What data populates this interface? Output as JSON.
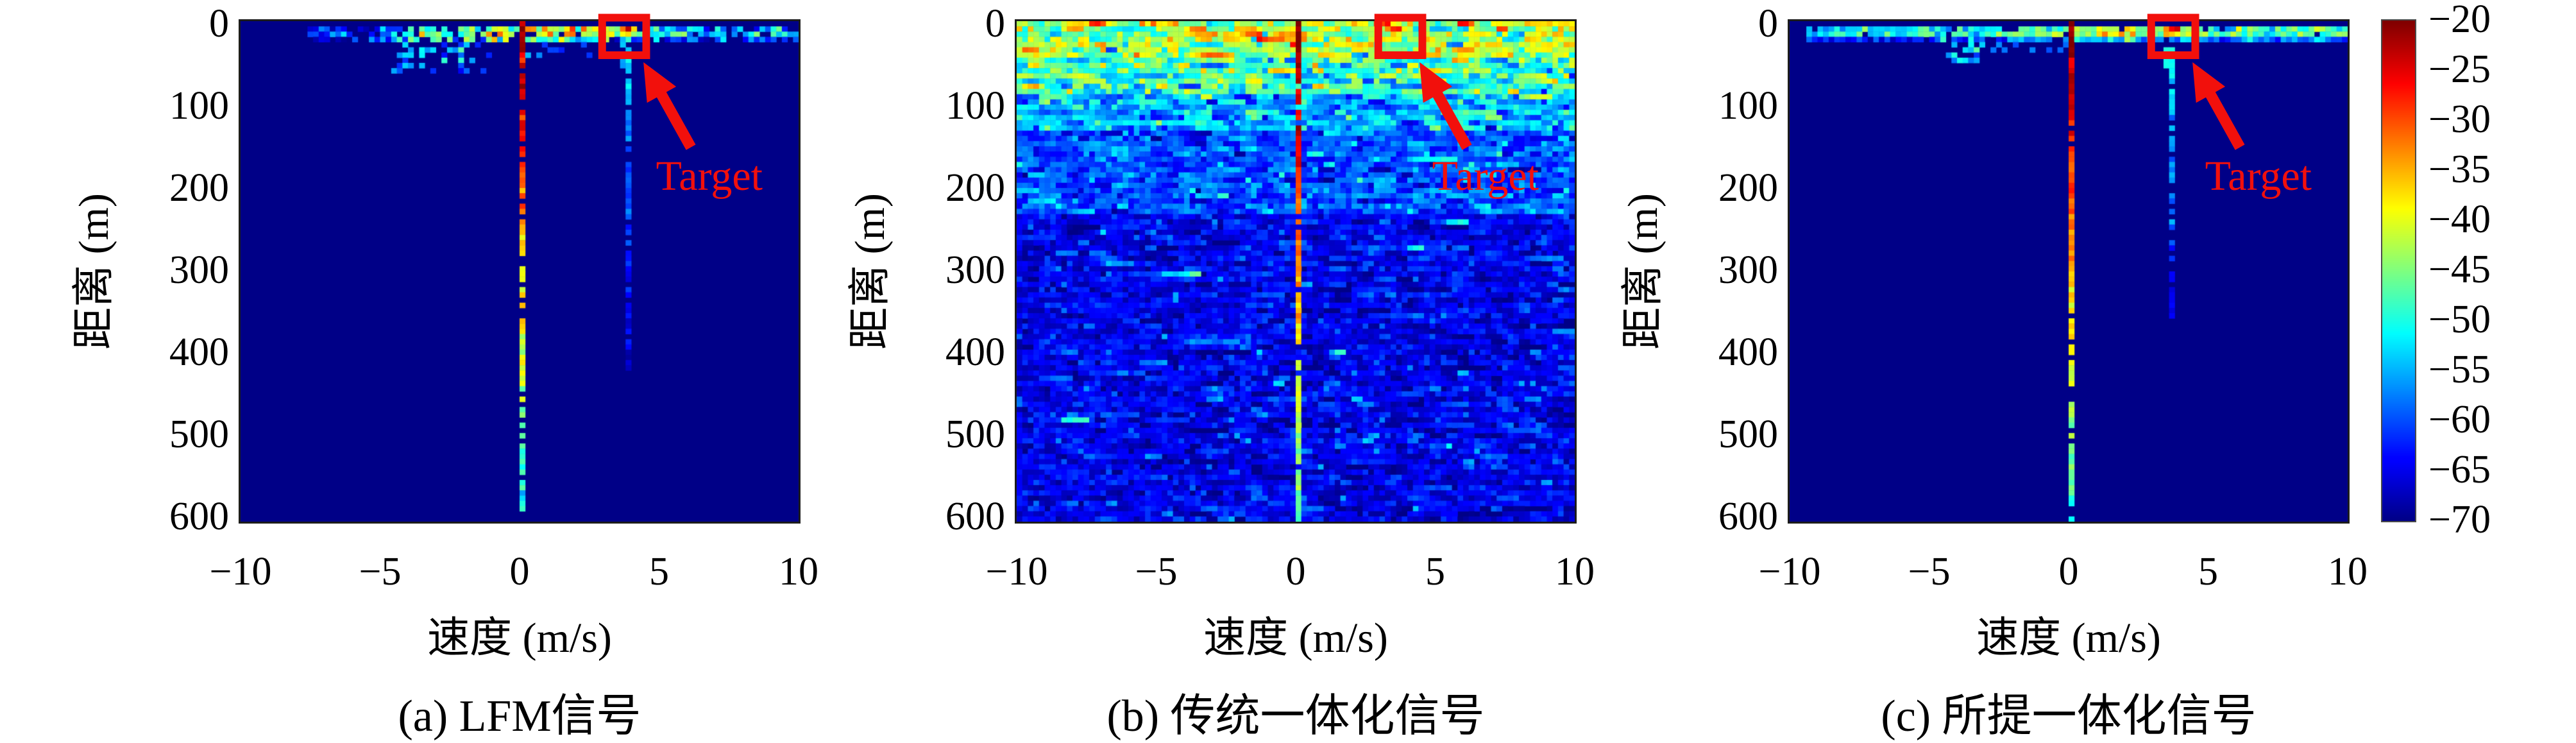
{
  "figure": {
    "background": "#ffffff",
    "text_color": "#000000",
    "annotation_color": "#f2100c",
    "plot_border_color": "#1c1c1c"
  },
  "chart_data": {
    "type": "heatmap",
    "xlabel": "速度 (m/s)",
    "ylabel": "距离 (m)",
    "x_range": [
      -10,
      10
    ],
    "y_range": [
      0,
      600
    ],
    "x_ticks": [
      {
        "v": -10,
        "label": "−10"
      },
      {
        "v": -5,
        "label": "−5"
      },
      {
        "v": 0,
        "label": "0"
      },
      {
        "v": 5,
        "label": "5"
      },
      {
        "v": 10,
        "label": "10"
      }
    ],
    "y_ticks": [
      {
        "v": 0,
        "label": "0"
      },
      {
        "v": 100,
        "label": "100"
      },
      {
        "v": 200,
        "label": "200"
      },
      {
        "v": 300,
        "label": "300"
      },
      {
        "v": 400,
        "label": "400"
      },
      {
        "v": 500,
        "label": "500"
      },
      {
        "v": 600,
        "label": "600"
      }
    ],
    "colorbar": {
      "colormap": "jet",
      "min": -70,
      "max": -20,
      "ticks": [
        {
          "v": -20,
          "label": "−20"
        },
        {
          "v": -25,
          "label": "−25"
        },
        {
          "v": -30,
          "label": "−30"
        },
        {
          "v": -35,
          "label": "−35"
        },
        {
          "v": -40,
          "label": "−40"
        },
        {
          "v": -45,
          "label": "−45"
        },
        {
          "v": -50,
          "label": "−50"
        },
        {
          "v": -55,
          "label": "−55"
        },
        {
          "v": -60,
          "label": "−60"
        },
        {
          "v": -65,
          "label": "−65"
        },
        {
          "v": -70,
          "label": "−70"
        }
      ]
    },
    "annotation": {
      "label": "Target",
      "box": {
        "x1": 0.648,
        "y1": -0.007,
        "x2": 0.727,
        "y2": 0.068
      },
      "arrow": {
        "tail": [
          0.807,
          0.252
        ],
        "tip": [
          0.722,
          0.082
        ]
      },
      "label_pos": {
        "x": 0.84,
        "y": 0.31
      }
    },
    "panels": [
      {
        "id": "a",
        "caption": "(a) LFM信号",
        "signal_name": "LFM信号",
        "target": {
          "velocity_mps": 3.8,
          "range_m": 12,
          "peak_db": -22
        },
        "clutter_ridge": {
          "velocity_mps": 0,
          "top_db": -20,
          "bottom_db": -52
        },
        "seed": 11,
        "features": [
          {
            "type": "band",
            "sd": 5,
            "skip": 0.18,
            "c0": 12,
            "rows": [
              {
                "r": 1,
                "mean": -56
              },
              {
                "r": 2,
                "mean": -53
              },
              {
                "r": 3,
                "mean": -61
              }
            ],
            "segments": [
              {
                "c0": 30,
                "c1": 67,
                "boost": 9
              },
              {
                "c0": 44,
                "c1": 62,
                "boost": 7
              },
              {
                "c0": 63,
                "c1": 75,
                "boost": 4
              },
              {
                "c0": 12,
                "c1": 25,
                "boost": -6
              }
            ]
          },
          {
            "type": "speckle",
            "c0": 27,
            "c1": 44,
            "r0": 3,
            "r1": 9,
            "density": 0.3,
            "mean": -57,
            "sd": 4
          },
          {
            "type": "speckle",
            "c0": 51,
            "c1": 64,
            "r0": 3,
            "r1": 6,
            "density": 0.2,
            "mean": -60,
            "sd": 3
          },
          {
            "type": "ridge",
            "col": 50,
            "top": -20,
            "bottom": -52,
            "solid_rows": 7,
            "gap_prob": 0.17,
            "jitter": 2.5
          },
          {
            "type": "streak",
            "col": 69,
            "r0": 4,
            "r1": 66,
            "v0": -53,
            "v1": -67,
            "gap_prob": 0.28,
            "extras": [
              {
                "col": 68,
                "r0": 3,
                "r1": 9,
                "v": -54
              }
            ]
          },
          {
            "type": "blob",
            "col": 69,
            "row": 1,
            "cells": [
              [
                0,
                0,
                -23
              ],
              [
                -1,
                0,
                -32
              ],
              [
                1,
                0,
                -37
              ],
              [
                0,
                1,
                -37
              ],
              [
                -1,
                1,
                -41
              ],
              [
                1,
                1,
                -44
              ],
              [
                -2,
                0,
                -45
              ],
              [
                0,
                2,
                -50
              ]
            ]
          }
        ]
      },
      {
        "id": "b",
        "caption": "(b) 传统一体化信号",
        "signal_name": "传统一体化信号",
        "target": {
          "velocity_mps": 3.5,
          "range_m": 12,
          "peak_db": -27
        },
        "clutter_ridge": {
          "velocity_mps": 0,
          "top_db": -20,
          "bottom_db": -47
        },
        "seed": 22,
        "features": [
          {
            "type": "noise",
            "hcorr": 0.45,
            "outlier": 0.02,
            "outlier_boost": 7,
            "bands": [
              {
                "r0": 0,
                "r1": 6,
                "mean": -43,
                "sd": 5.5
              },
              {
                "r0": 7,
                "r1": 13,
                "mean": -49,
                "sd": 5
              },
              {
                "r0": 14,
                "r1": 20,
                "mean": -55,
                "sd": 4.5
              },
              {
                "r0": 21,
                "r1": 36,
                "mean": -60,
                "sd": 3.5
              },
              {
                "r0": 37,
                "r1": 95,
                "mean": -65,
                "sd": 2.8
              }
            ]
          },
          {
            "type": "ridge",
            "col": 50,
            "top": -20,
            "bottom": -47,
            "solid_rows": 9,
            "gap_prob": 0.1,
            "jitter": 2
          },
          {
            "type": "blob",
            "col": 67,
            "row": 1,
            "cells": [
              [
                0,
                0,
                -28
              ],
              [
                1,
                0,
                -27
              ],
              [
                -1,
                0,
                -33
              ],
              [
                0,
                1,
                -36
              ],
              [
                1,
                1,
                -40
              ],
              [
                2,
                0,
                -38
              ]
            ]
          }
        ]
      },
      {
        "id": "c",
        "caption": "(c) 所提一体化信号",
        "signal_name": "所提一体化信号",
        "target": {
          "velocity_mps": 3.6,
          "range_m": 12,
          "peak_db": -24
        },
        "clutter_ridge": {
          "velocity_mps": 0,
          "top_db": -20,
          "bottom_db": -50
        },
        "seed": 33,
        "features": [
          {
            "type": "band",
            "sd": 4,
            "skip": 0.1,
            "c0": 3,
            "rows": [
              {
                "r": 1,
                "mean": -52
              },
              {
                "r": 2,
                "mean": -50
              },
              {
                "r": 3,
                "mean": -62
              }
            ],
            "segments": [
              {
                "c0": 40,
                "c1": 75,
                "boost": 6
              },
              {
                "c0": 55,
                "c1": 62,
                "boost": 6
              },
              {
                "c0": 80,
                "c1": 100,
                "boost": 3
              }
            ]
          },
          {
            "type": "speckle",
            "c0": 27,
            "c1": 34,
            "r0": 3,
            "r1": 7,
            "density": 0.3,
            "mean": -55,
            "sd": 4
          },
          {
            "type": "speckle",
            "c0": 36,
            "c1": 49,
            "r0": 3,
            "r1": 5,
            "density": 0.25,
            "mean": -58,
            "sd": 3
          },
          {
            "type": "ridge",
            "col": 50,
            "top": -20,
            "bottom": -50,
            "solid_rows": 10,
            "gap_prob": 0.12,
            "jitter": 2
          },
          {
            "type": "streak",
            "col": 68,
            "r0": 3,
            "r1": 56,
            "v0": -50,
            "v1": -66,
            "gap_prob": 0.3,
            "extras": [
              {
                "col": 67,
                "r0": 3,
                "r1": 8,
                "v": -53
              }
            ]
          },
          {
            "type": "blob",
            "col": 68,
            "row": 1,
            "cells": [
              [
                0,
                0,
                -26
              ],
              [
                1,
                0,
                -24
              ],
              [
                -1,
                0,
                -33
              ],
              [
                0,
                1,
                -36
              ],
              [
                1,
                1,
                -39
              ],
              [
                -1,
                1,
                -44
              ],
              [
                2,
                0,
                -45
              ]
            ]
          }
        ]
      }
    ]
  }
}
